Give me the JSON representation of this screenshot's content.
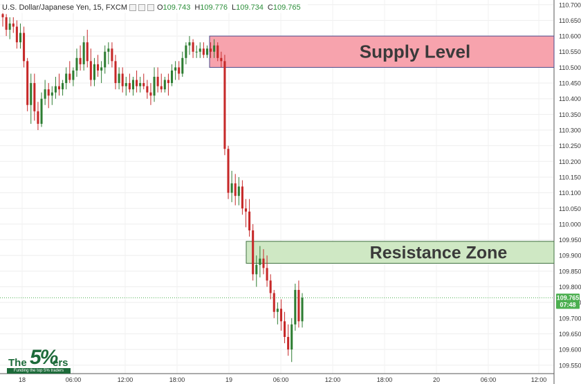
{
  "legend": {
    "symbol": "U.S. Dollar/Japanese Yen, 15, FXCM",
    "open_label": "O",
    "open": "109.743",
    "high_label": "H",
    "high": "109.776",
    "low_label": "L",
    "low": "109.734",
    "close_label": "C",
    "close": "109.765"
  },
  "price_badge": {
    "price": "109.765",
    "countdown": "07:48"
  },
  "zones": {
    "supply": {
      "label": "Supply Level",
      "top_price": 110.6,
      "bottom_price": 110.5
    },
    "resistance": {
      "label": "Resistance Zone",
      "top_price": 109.945,
      "bottom_price": 109.875
    }
  },
  "logo": {
    "word": "The",
    "five": "5%",
    "tail": "ers",
    "tagline": "Funding the top 5% traders"
  },
  "colors": {
    "up": "#2e7d32",
    "down": "#c62828",
    "supply_fill": "#f7a3ad",
    "supply_border": "#4a4a8a",
    "resistance_fill": "#cfe8c4",
    "resistance_border": "#3f6f3f",
    "badge": "#4caf50"
  },
  "chart_data": {
    "type": "candlestick",
    "y_ticks": [
      "110.700",
      "110.650",
      "110.600",
      "110.550",
      "110.500",
      "110.450",
      "110.400",
      "110.350",
      "110.300",
      "110.250",
      "110.200",
      "110.150",
      "110.100",
      "110.050",
      "110.000",
      "109.950",
      "109.900",
      "109.850",
      "109.800",
      "109.750",
      "109.700",
      "109.650",
      "109.600",
      "109.550"
    ],
    "y_range": [
      109.523,
      110.715
    ],
    "x_ticks": [
      "18",
      "06:00",
      "12:00",
      "18:00",
      "19",
      "06:00",
      "12:00",
      "18:00",
      "20",
      "06:00",
      "12:00"
    ],
    "last_price": 109.765,
    "candles": [
      [
        110.67,
        110.69,
        110.63,
        110.66
      ],
      [
        110.66,
        110.67,
        110.6,
        110.62
      ],
      [
        110.62,
        110.66,
        110.59,
        110.64
      ],
      [
        110.64,
        110.66,
        110.61,
        110.63
      ],
      [
        110.63,
        110.65,
        110.56,
        110.58
      ],
      [
        110.58,
        110.64,
        110.56,
        110.61
      ],
      [
        110.61,
        110.63,
        110.5,
        110.52
      ],
      [
        110.52,
        110.53,
        110.36,
        110.38
      ],
      [
        110.38,
        110.48,
        110.32,
        110.45
      ],
      [
        110.45,
        110.48,
        110.33,
        110.36
      ],
      [
        110.36,
        110.39,
        110.3,
        110.32
      ],
      [
        110.32,
        110.42,
        110.31,
        110.4
      ],
      [
        110.4,
        110.46,
        110.38,
        110.43
      ],
      [
        110.43,
        110.45,
        110.37,
        110.41
      ],
      [
        110.41,
        110.44,
        110.38,
        110.42
      ],
      [
        110.42,
        110.47,
        110.4,
        110.44
      ],
      [
        110.44,
        110.48,
        110.41,
        110.43
      ],
      [
        110.43,
        110.46,
        110.41,
        110.45
      ],
      [
        110.45,
        110.5,
        110.43,
        110.48
      ],
      [
        110.48,
        110.52,
        110.45,
        110.46
      ],
      [
        110.46,
        110.5,
        110.44,
        110.49
      ],
      [
        110.49,
        110.56,
        110.47,
        110.53
      ],
      [
        110.53,
        110.57,
        110.49,
        110.51
      ],
      [
        110.51,
        110.6,
        110.49,
        110.58
      ],
      [
        110.58,
        110.62,
        110.5,
        110.52
      ],
      [
        110.52,
        110.56,
        110.44,
        110.46
      ],
      [
        110.46,
        110.53,
        110.44,
        110.51
      ],
      [
        110.51,
        110.54,
        110.47,
        110.49
      ],
      [
        110.49,
        110.52,
        110.45,
        110.5
      ],
      [
        110.5,
        110.57,
        110.48,
        110.55
      ],
      [
        110.55,
        110.58,
        110.51,
        110.56
      ],
      [
        110.56,
        110.58,
        110.5,
        110.52
      ],
      [
        110.52,
        110.54,
        110.43,
        110.45
      ],
      [
        110.45,
        110.5,
        110.43,
        110.48
      ],
      [
        110.48,
        110.5,
        110.42,
        110.44
      ],
      [
        110.44,
        110.47,
        110.41,
        110.45
      ],
      [
        110.45,
        110.48,
        110.42,
        110.43
      ],
      [
        110.43,
        110.47,
        110.41,
        110.46
      ],
      [
        110.46,
        110.49,
        110.42,
        110.44
      ],
      [
        110.44,
        110.47,
        110.42,
        110.45
      ],
      [
        110.45,
        110.48,
        110.43,
        110.44
      ],
      [
        110.44,
        110.46,
        110.4,
        110.42
      ],
      [
        110.42,
        110.45,
        110.38,
        110.41
      ],
      [
        110.41,
        110.5,
        110.39,
        110.47
      ],
      [
        110.47,
        110.5,
        110.42,
        110.44
      ],
      [
        110.44,
        110.48,
        110.42,
        110.43
      ],
      [
        110.43,
        110.47,
        110.42,
        110.46
      ],
      [
        110.46,
        110.48,
        110.41,
        110.45
      ],
      [
        110.45,
        110.51,
        110.44,
        110.49
      ],
      [
        110.49,
        110.52,
        110.46,
        110.5
      ],
      [
        110.5,
        110.52,
        110.46,
        110.48
      ],
      [
        110.48,
        110.55,
        110.47,
        110.53
      ],
      [
        110.53,
        110.58,
        110.51,
        110.57
      ],
      [
        110.57,
        110.6,
        110.54,
        110.58
      ],
      [
        110.58,
        110.59,
        110.53,
        110.55
      ],
      [
        110.55,
        110.57,
        110.53,
        110.55
      ],
      [
        110.55,
        110.58,
        110.53,
        110.56
      ],
      [
        110.56,
        110.58,
        110.53,
        110.54
      ],
      [
        110.54,
        110.57,
        110.53,
        110.56
      ],
      [
        110.56,
        110.58,
        110.53,
        110.55
      ],
      [
        110.55,
        110.59,
        110.53,
        110.57
      ],
      [
        110.57,
        110.58,
        110.52,
        110.53
      ],
      [
        110.53,
        110.55,
        110.5,
        110.52
      ],
      [
        110.52,
        110.54,
        110.22,
        110.24
      ],
      [
        110.24,
        110.25,
        110.08,
        110.1
      ],
      [
        110.1,
        110.17,
        110.07,
        110.13
      ],
      [
        110.13,
        110.16,
        110.06,
        110.09
      ],
      [
        110.09,
        110.15,
        110.06,
        110.12
      ],
      [
        110.12,
        110.14,
        110.03,
        110.05
      ],
      [
        110.05,
        110.08,
        109.99,
        110.04
      ],
      [
        110.04,
        110.08,
        109.96,
        109.98
      ],
      [
        109.98,
        110.0,
        109.82,
        109.84
      ],
      [
        109.84,
        109.9,
        109.8,
        109.87
      ],
      [
        109.87,
        109.93,
        109.83,
        109.89
      ],
      [
        109.89,
        109.92,
        109.84,
        109.86
      ],
      [
        109.86,
        109.9,
        109.8,
        109.82
      ],
      [
        109.82,
        109.84,
        109.76,
        109.78
      ],
      [
        109.78,
        109.79,
        109.7,
        109.72
      ],
      [
        109.72,
        109.75,
        109.68,
        109.73
      ],
      [
        109.73,
        109.76,
        109.66,
        109.69
      ],
      [
        109.69,
        109.72,
        109.62,
        109.64
      ],
      [
        109.64,
        109.68,
        109.58,
        109.6
      ],
      [
        109.6,
        109.7,
        109.56,
        109.68
      ],
      [
        109.68,
        109.81,
        109.66,
        109.79
      ],
      [
        109.79,
        109.82,
        109.67,
        109.69
      ],
      [
        109.69,
        109.78,
        109.67,
        109.765
      ]
    ]
  }
}
